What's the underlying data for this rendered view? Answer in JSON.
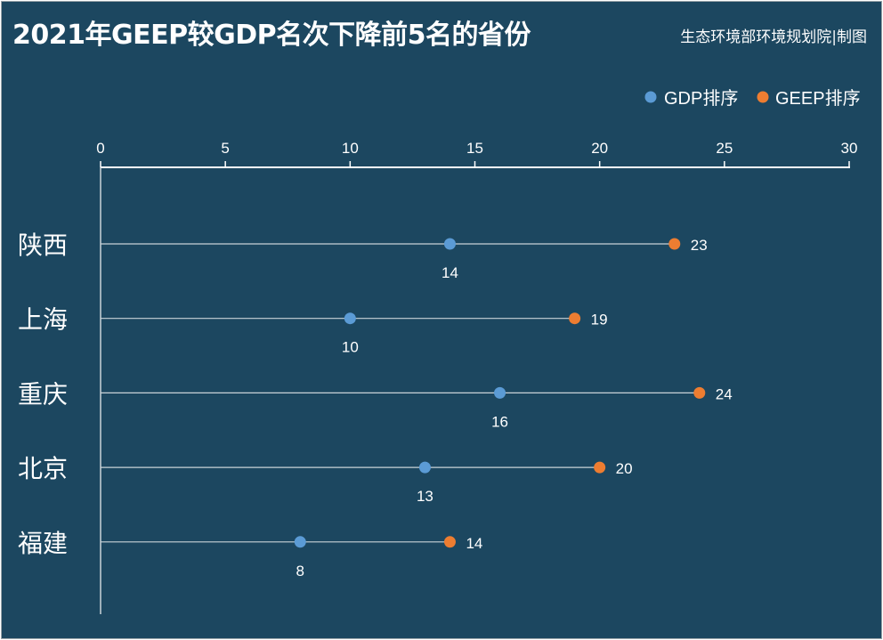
{
  "title": "2021年GEEP较GDP名次下降前5名的省份",
  "credit": "生态环境部环境规划院|制图",
  "colors": {
    "background": "#1c4760",
    "gdp": "#5b9bd5",
    "geep": "#ed7d31",
    "text": "#ffffff",
    "line": "#c9d3d8"
  },
  "chart_data": {
    "type": "scatter",
    "title": "2021年GEEP较GDP名次下降前5名的省份",
    "xlabel": "",
    "ylabel": "",
    "xlim": [
      0,
      30
    ],
    "xticks": [
      0,
      5,
      10,
      15,
      20,
      25,
      30
    ],
    "x_axis_position": "top",
    "legend_position": "top-right",
    "grid": false,
    "categories": [
      "陕西",
      "上海",
      "重庆",
      "北京",
      "福建"
    ],
    "series": [
      {
        "name": "GDP排序",
        "values": [
          14,
          10,
          16,
          13,
          8
        ]
      },
      {
        "name": "GEEP排序",
        "values": [
          23,
          19,
          24,
          20,
          14
        ]
      }
    ]
  }
}
